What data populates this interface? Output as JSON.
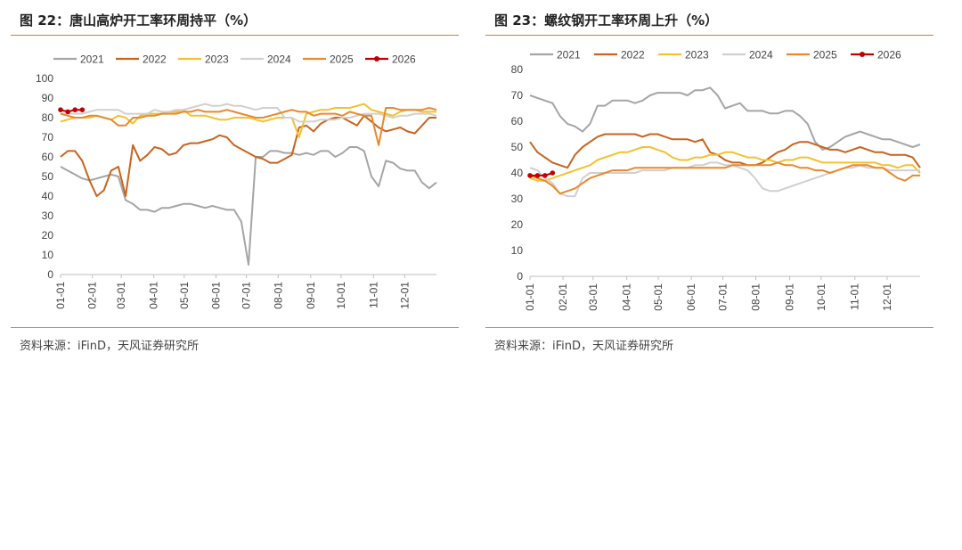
{
  "panels": [
    {
      "title": "图 22：唐山高炉开工率环周持平（%）",
      "source": "资料来源：iFinD，天风证券研究所"
    },
    {
      "title": "图 23：螺纹钢开工率环周上升（%）",
      "source": "资料来源：iFinD，天风证券研究所"
    }
  ],
  "chart_data": [
    {
      "type": "line",
      "title": "图 22：唐山高炉开工率环周持平（%）",
      "xlabel": "",
      "ylabel": "",
      "ylim": [
        0,
        100
      ],
      "yticks": [
        0,
        10,
        20,
        30,
        40,
        50,
        60,
        70,
        80,
        90,
        100
      ],
      "xlim": [
        1,
        53
      ],
      "xticks": [
        {
          "label": "01-01",
          "week": 1
        },
        {
          "label": "02-01",
          "week": 5.4
        },
        {
          "label": "03-01",
          "week": 9.4
        },
        {
          "label": "04-01",
          "week": 13.9
        },
        {
          "label": "05-01",
          "week": 18.1
        },
        {
          "label": "06-01",
          "week": 22.5
        },
        {
          "label": "07-01",
          "week": 26.7
        },
        {
          "label": "08-01",
          "week": 31.1
        },
        {
          "label": "09-01",
          "week": 35.6
        },
        {
          "label": "10-01",
          "week": 39.8
        },
        {
          "label": "11-01",
          "week": 44.3
        },
        {
          "label": "12-01",
          "week": 48.6
        }
      ],
      "legend_position": "top",
      "grid": false,
      "series": [
        {
          "name": "2021",
          "color": "#a5a5a5",
          "marker": false,
          "values": [
            55,
            53,
            51,
            49,
            48,
            49,
            50,
            51,
            50,
            38,
            36,
            33,
            33,
            32,
            34,
            34,
            35,
            36,
            36,
            35,
            34,
            35,
            34,
            33,
            33,
            27,
            5,
            60,
            60,
            63,
            63,
            62,
            62,
            61,
            62,
            61,
            63,
            63,
            60,
            62,
            65,
            65,
            63,
            50,
            45,
            58,
            57,
            54,
            53,
            53,
            47,
            44,
            47
          ]
        },
        {
          "name": "2022",
          "color": "#c8641e",
          "marker": false,
          "values": [
            60,
            63,
            63,
            58,
            48,
            40,
            43,
            53,
            55,
            40,
            66,
            58,
            61,
            65,
            64,
            61,
            62,
            66,
            67,
            67,
            68,
            69,
            71,
            70,
            66,
            64,
            62,
            60,
            59,
            57,
            57,
            59,
            61,
            75,
            76,
            73,
            77,
            79,
            80,
            80,
            78,
            76,
            81,
            78,
            75,
            73,
            74,
            75,
            73,
            72,
            76,
            80,
            80
          ]
        },
        {
          "name": "2023",
          "color": "#f2c22e",
          "marker": false,
          "values": [
            78,
            79,
            80,
            80,
            80,
            81,
            80,
            79,
            81,
            80,
            77,
            81,
            82,
            82,
            82,
            83,
            83,
            84,
            81,
            81,
            81,
            80,
            79,
            79,
            80,
            80,
            80,
            79,
            78,
            79,
            80,
            80,
            80,
            70,
            82,
            83,
            84,
            84,
            85,
            85,
            85,
            86,
            87,
            84,
            83,
            82,
            81,
            83,
            84,
            84,
            83,
            83,
            83
          ]
        },
        {
          "name": "2024",
          "color": "#d0d0d0",
          "marker": false,
          "values": [
            82,
            82,
            82,
            82,
            83,
            84,
            84,
            84,
            84,
            82,
            82,
            82,
            82,
            84,
            83,
            83,
            84,
            84,
            85,
            86,
            87,
            86,
            86,
            87,
            86,
            86,
            85,
            84,
            85,
            85,
            85,
            80,
            80,
            78,
            78,
            78,
            79,
            79,
            79,
            80,
            80,
            81,
            82,
            82,
            82,
            81,
            80,
            81,
            81,
            82,
            82,
            82,
            81
          ]
        },
        {
          "name": "2025",
          "color": "#e8892e",
          "marker": false,
          "values": [
            82,
            81,
            80,
            80,
            81,
            81,
            80,
            79,
            76,
            76,
            80,
            80,
            81,
            81,
            82,
            82,
            82,
            83,
            83,
            84,
            83,
            83,
            83,
            84,
            83,
            82,
            81,
            80,
            80,
            81,
            82,
            83,
            84,
            83,
            83,
            81,
            82,
            82,
            82,
            81,
            83,
            82,
            81,
            81,
            66,
            85,
            85,
            84,
            84,
            84,
            84,
            85,
            84
          ]
        },
        {
          "name": "2026",
          "color": "#c00000",
          "marker": true,
          "values": [
            84,
            83,
            84,
            84
          ]
        }
      ]
    },
    {
      "type": "line",
      "title": "图 23：螺纹钢开工率环周上升（%）",
      "xlabel": "",
      "ylabel": "",
      "ylim": [
        0,
        80
      ],
      "yticks": [
        0,
        10,
        20,
        30,
        40,
        50,
        60,
        70,
        80
      ],
      "xlim": [
        1,
        53
      ],
      "xticks": [
        {
          "label": "01-01",
          "week": 1
        },
        {
          "label": "02-01",
          "week": 5.4
        },
        {
          "label": "03-01",
          "week": 9.4
        },
        {
          "label": "04-01",
          "week": 13.9
        },
        {
          "label": "05-01",
          "week": 18.1
        },
        {
          "label": "06-01",
          "week": 22.5
        },
        {
          "label": "07-01",
          "week": 26.7
        },
        {
          "label": "08-01",
          "week": 31.1
        },
        {
          "label": "09-01",
          "week": 35.6
        },
        {
          "label": "10-01",
          "week": 39.8
        },
        {
          "label": "11-01",
          "week": 44.3
        },
        {
          "label": "12-01",
          "week": 48.6
        }
      ],
      "legend_position": "top",
      "grid": false,
      "series": [
        {
          "name": "2021",
          "color": "#a5a5a5",
          "marker": false,
          "values": [
            70,
            69,
            68,
            67,
            62,
            59,
            58,
            56,
            59,
            66,
            66,
            68,
            68,
            68,
            67,
            68,
            70,
            71,
            71,
            71,
            71,
            70,
            72,
            72,
            73,
            70,
            65,
            66,
            67,
            64,
            64,
            64,
            63,
            63,
            64,
            64,
            62,
            59,
            52,
            49,
            50,
            52,
            54,
            55,
            56,
            55,
            54,
            53,
            53,
            52,
            51,
            50,
            51
          ]
        },
        {
          "name": "2022",
          "color": "#c8641e",
          "marker": false,
          "values": [
            52,
            48,
            46,
            44,
            43,
            42,
            47,
            50,
            52,
            54,
            55,
            55,
            55,
            55,
            55,
            54,
            55,
            55,
            54,
            53,
            53,
            53,
            52,
            53,
            48,
            47,
            45,
            44,
            44,
            43,
            43,
            44,
            46,
            48,
            49,
            51,
            52,
            52,
            51,
            50,
            49,
            49,
            48,
            49,
            50,
            49,
            48,
            48,
            47,
            47,
            47,
            46,
            42
          ]
        },
        {
          "name": "2023",
          "color": "#f2c22e",
          "marker": false,
          "values": [
            38,
            37,
            37,
            38,
            39,
            40,
            41,
            42,
            43,
            45,
            46,
            47,
            48,
            48,
            49,
            50,
            50,
            49,
            48,
            46,
            45,
            45,
            46,
            46,
            47,
            47,
            48,
            48,
            47,
            46,
            46,
            45,
            45,
            44,
            45,
            45,
            46,
            46,
            45,
            44,
            44,
            44,
            44,
            44,
            44,
            44,
            44,
            43,
            43,
            42,
            43,
            43,
            40
          ]
        },
        {
          "name": "2024",
          "color": "#d0d0d0",
          "marker": false,
          "values": [
            42,
            41,
            38,
            36,
            32,
            31,
            31,
            38,
            40,
            40,
            40,
            40,
            40,
            40,
            40,
            41,
            41,
            41,
            41,
            42,
            42,
            42,
            43,
            43,
            44,
            44,
            43,
            43,
            42,
            41,
            38,
            34,
            33,
            33,
            34,
            35,
            36,
            37,
            38,
            39,
            40,
            41,
            42,
            42,
            43,
            42,
            42,
            42,
            41,
            41,
            41,
            41,
            41
          ]
        },
        {
          "name": "2025",
          "color": "#e8892e",
          "marker": false,
          "values": [
            39,
            38,
            37,
            35,
            32,
            33,
            34,
            36,
            38,
            39,
            40,
            41,
            41,
            41,
            42,
            42,
            42,
            42,
            42,
            42,
            42,
            42,
            42,
            42,
            42,
            42,
            42,
            43,
            43,
            43,
            43,
            43,
            43,
            44,
            43,
            43,
            42,
            42,
            41,
            41,
            40,
            41,
            42,
            43,
            43,
            43,
            42,
            42,
            40,
            38,
            37,
            39,
            39
          ]
        },
        {
          "name": "2026",
          "color": "#c00000",
          "marker": true,
          "values": [
            39,
            39,
            39,
            40
          ]
        }
      ]
    }
  ]
}
